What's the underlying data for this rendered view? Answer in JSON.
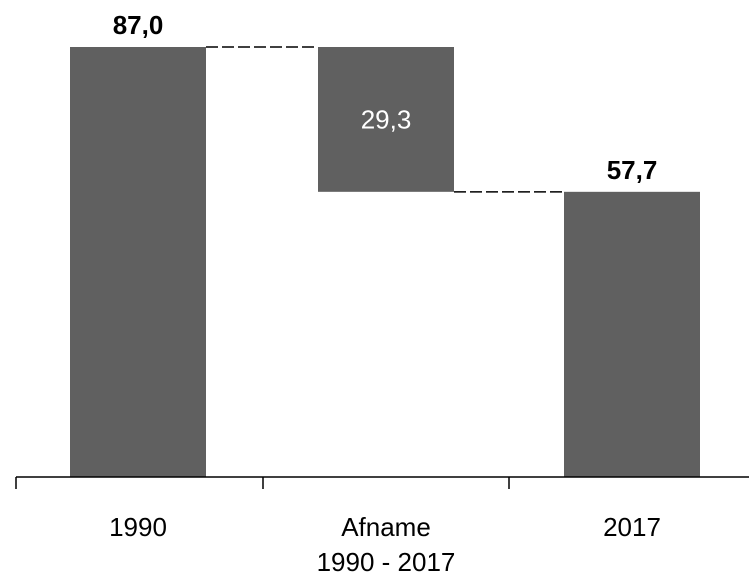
{
  "chart_data": {
    "type": "bar",
    "subtype": "waterfall",
    "categories": [
      [
        "1990"
      ],
      [
        "Afname",
        "1990 - 2017"
      ],
      [
        "2017"
      ]
    ],
    "values": [
      87.0,
      -29.3,
      57.7
    ],
    "value_labels": [
      "87,0",
      "29,3",
      "57,7"
    ],
    "ylim": [
      0,
      100
    ],
    "grid": false,
    "title": "",
    "xlabel": "",
    "ylabel": "",
    "colors": {
      "bar": "#606060",
      "connector": "#000000",
      "axis": "#000000",
      "label_outside": "#000000",
      "label_inside": "#ffffff"
    }
  }
}
